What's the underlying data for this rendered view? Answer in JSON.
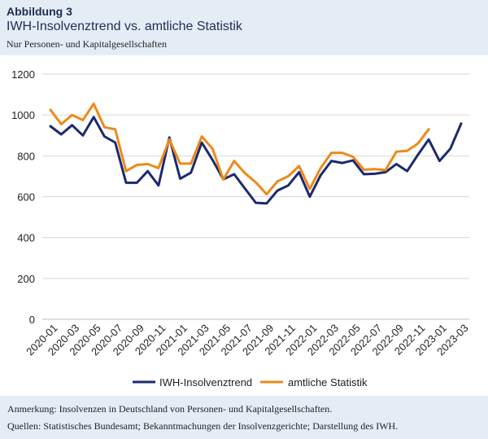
{
  "figure": {
    "label": "Abbildung 3",
    "title": "IWH-Insolvenztrend vs. amtliche Statistik",
    "subtitle": "Nur Personen- und Kapitalgesellschaften"
  },
  "footer": {
    "note": "Anmerkung: Insolvenzen in Deutschland von Personen- und Kapitalgesellschaften.",
    "sources": "Quellen: Statistisches Bundesamt; Bekanntmachungen der Insolvenzgerichte; Darstellung des IWH."
  },
  "colors": {
    "iwh": "#1c2a6e",
    "amtlich": "#ec8a1a",
    "grid": "#d9d9d9"
  },
  "chart_data": {
    "type": "line",
    "ylim": [
      0,
      1200
    ],
    "yticks": [
      0,
      200,
      400,
      600,
      800,
      1000,
      1200
    ],
    "categories": [
      "2020-01",
      "2020-02",
      "2020-03",
      "2020-04",
      "2020-05",
      "2020-06",
      "2020-07",
      "2020-08",
      "2020-09",
      "2020-10",
      "2020-11",
      "2020-12",
      "2021-01",
      "2021-02",
      "2021-03",
      "2021-04",
      "2021-05",
      "2021-06",
      "2021-07",
      "2021-08",
      "2021-09",
      "2021-10",
      "2021-11",
      "2021-12",
      "2022-01",
      "2022-02",
      "2022-03",
      "2022-04",
      "2022-05",
      "2022-06",
      "2022-07",
      "2022-08",
      "2022-09",
      "2022-10",
      "2022-11",
      "2022-12",
      "2023-01",
      "2023-02",
      "2023-03"
    ],
    "xtick_labels": [
      "2020-01",
      "2020-03",
      "2020-05",
      "2020-07",
      "2020-09",
      "2020-11",
      "2021-01",
      "2021-03",
      "2021-05",
      "2021-07",
      "2021-09",
      "2021-11",
      "2022-01",
      "2022-03",
      "2022-05",
      "2022-07",
      "2022-09",
      "2022-11",
      "2023-01",
      "2023-03"
    ],
    "legend_position": "bottom",
    "series": [
      {
        "name": "IWH-Insolvenztrend",
        "color": "#1c2a6e",
        "values": [
          945,
          905,
          950,
          900,
          990,
          895,
          865,
          668,
          668,
          725,
          655,
          890,
          688,
          718,
          865,
          780,
          685,
          710,
          640,
          570,
          567,
          630,
          655,
          720,
          600,
          705,
          775,
          765,
          778,
          710,
          712,
          720,
          760,
          725,
          805,
          880,
          775,
          835,
          958
        ]
      },
      {
        "name": "amtliche Statistik",
        "color": "#ec8a1a",
        "values": [
          1025,
          955,
          1000,
          975,
          1055,
          940,
          930,
          725,
          755,
          760,
          740,
          880,
          762,
          762,
          895,
          835,
          685,
          775,
          715,
          670,
          612,
          675,
          700,
          750,
          638,
          740,
          815,
          815,
          795,
          732,
          735,
          730,
          820,
          825,
          860,
          930,
          null,
          null,
          null
        ]
      }
    ]
  }
}
